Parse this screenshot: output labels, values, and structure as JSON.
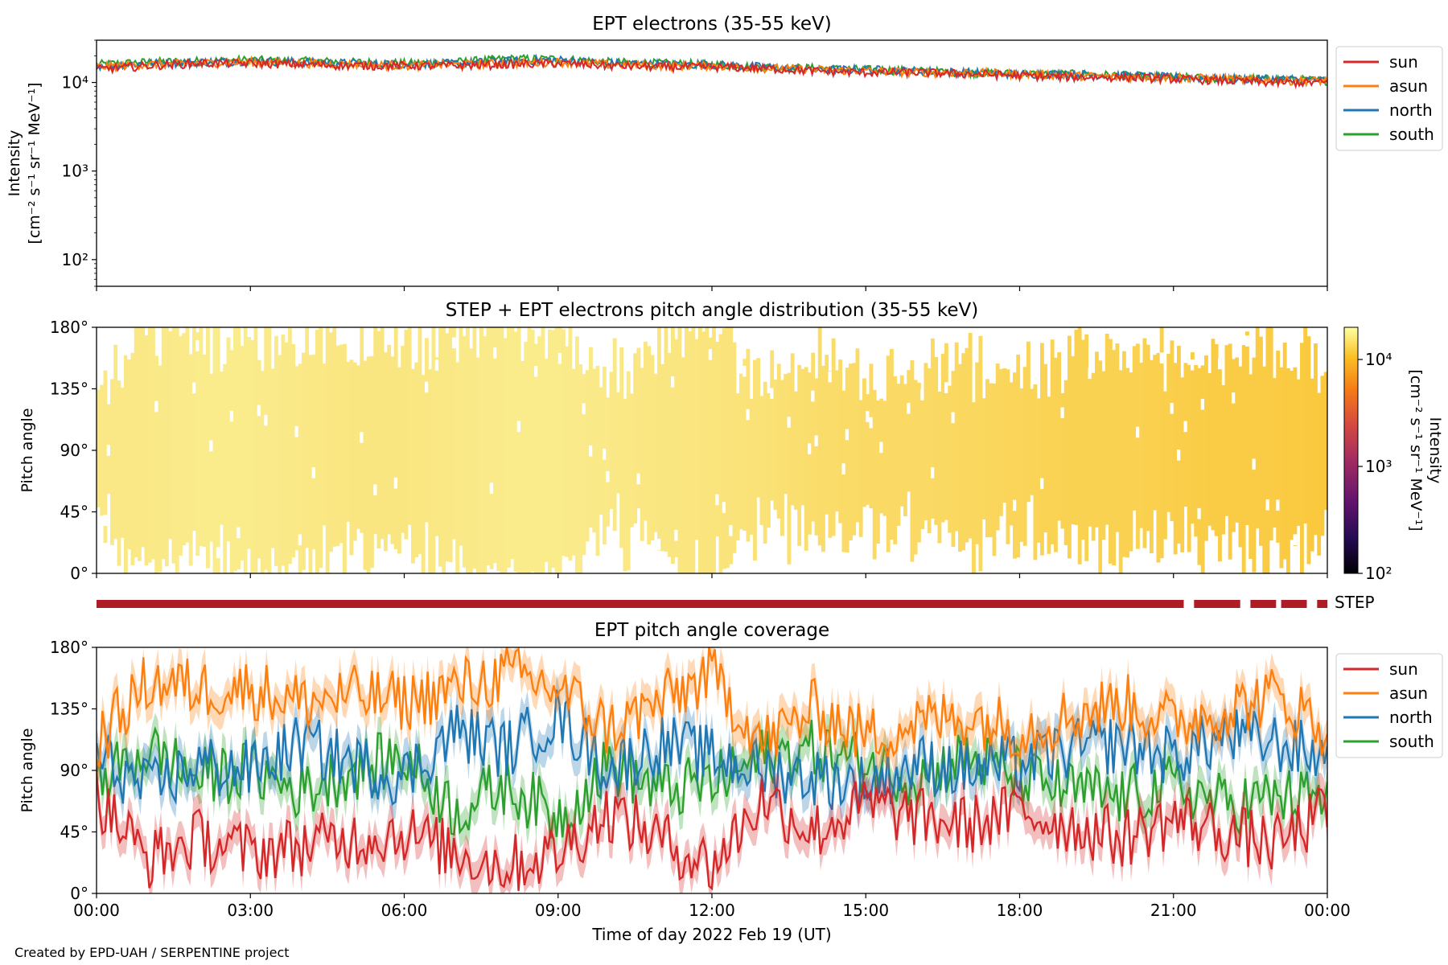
{
  "figure": {
    "credit": "Created by EPD-UAH / SERPENTINE project",
    "xlabel": "Time of day 2022 Feb 19 (UT)",
    "xticks": [
      "00:00",
      "03:00",
      "06:00",
      "09:00",
      "12:00",
      "15:00",
      "18:00",
      "21:00",
      "00:00"
    ]
  },
  "panels": {
    "p1": {
      "title": "EPT electrons (35-55 keV)",
      "ylabel_line1": "Intensity",
      "ylabel_line2": "[cm⁻² s⁻¹ sr⁻¹ MeV⁻¹]"
    },
    "p2": {
      "title": "STEP + EPT electrons pitch angle distribution (35-55 keV)",
      "ylabel": "Pitch angle",
      "cbar_label_line1": "Intensity",
      "cbar_label_line2": "[cm⁻² s⁻¹ sr⁻¹ MeV⁻¹]"
    },
    "step": {
      "label": "STEP"
    },
    "p3": {
      "title": "EPT pitch angle coverage",
      "ylabel": "Pitch angle"
    }
  },
  "legend": {
    "sun": "sun",
    "asun": "asun",
    "north": "north",
    "south": "south"
  },
  "colors": {
    "sun": "#d62728",
    "asun": "#ff7f0e",
    "north": "#1f77b4",
    "south": "#2ca02c",
    "step_bar": "#b01c26"
  },
  "chart_data": [
    {
      "type": "line",
      "title": "EPT electrons (35-55 keV)",
      "xlabel": "",
      "ylabel": "Intensity [cm⁻² s⁻¹ sr⁻¹ MeV⁻¹]",
      "yscale": "log",
      "ylim": [
        50,
        30000
      ],
      "yticks": [
        100,
        1000,
        10000
      ],
      "yticklabels": [
        "10²",
        "10³",
        "10⁴"
      ],
      "x_unit": "hours (UT)",
      "xlim": [
        0,
        24
      ],
      "x": [
        0,
        1,
        2,
        3,
        4,
        5,
        6,
        7,
        8,
        9,
        10,
        11,
        12,
        13,
        14,
        15,
        16,
        17,
        18,
        19,
        20,
        21,
        22,
        23,
        24
      ],
      "legend_position": "right",
      "series": [
        {
          "name": "sun",
          "values": [
            14000,
            15500,
            16500,
            16500,
            16000,
            15500,
            15500,
            15500,
            16000,
            16500,
            15500,
            15000,
            15000,
            14500,
            13500,
            13000,
            13000,
            12500,
            12000,
            11500,
            11500,
            11000,
            10500,
            10000,
            10000
          ]
        },
        {
          "name": "asun",
          "values": [
            15000,
            16000,
            16500,
            17000,
            16500,
            16000,
            15500,
            16000,
            16500,
            17000,
            16000,
            15500,
            15500,
            14500,
            14000,
            13500,
            13000,
            13000,
            12500,
            12000,
            11500,
            11500,
            11000,
            10500,
            10500
          ]
        },
        {
          "name": "north",
          "values": [
            15500,
            16500,
            17000,
            17500,
            17000,
            16500,
            16000,
            16500,
            17500,
            18000,
            16500,
            16000,
            16000,
            15000,
            14000,
            14000,
            13500,
            13000,
            12500,
            12500,
            12000,
            11500,
            11000,
            11000,
            10500
          ]
        },
        {
          "name": "south",
          "values": [
            16000,
            17000,
            17500,
            18000,
            17500,
            17000,
            16500,
            17000,
            18500,
            18500,
            17000,
            16500,
            16000,
            15000,
            14500,
            14000,
            13500,
            13000,
            12500,
            12500,
            12000,
            11500,
            11000,
            11000,
            10500
          ]
        }
      ]
    },
    {
      "type": "heatmap",
      "title": "STEP + EPT electrons pitch angle distribution (35-55 keV)",
      "xlabel": "",
      "ylabel": "Pitch angle",
      "ylim": [
        0,
        180
      ],
      "yticks": [
        0,
        45,
        90,
        135,
        180
      ],
      "yticklabels": [
        "0°",
        "45°",
        "90°",
        "135°",
        "180°"
      ],
      "x_unit": "hours (UT)",
      "xlim": [
        0,
        24
      ],
      "colorbar": {
        "label": "Intensity [cm⁻² s⁻¹ sr⁻¹ MeV⁻¹]",
        "scale": "log",
        "range": [
          100,
          20000
        ],
        "ticks": [
          100,
          1000,
          10000
        ],
        "ticklabels": [
          "10²",
          "10³",
          "10⁴"
        ],
        "colormap": "inferno"
      },
      "x": [
        0,
        1,
        2,
        3,
        4,
        5,
        6,
        7,
        8,
        9,
        10,
        11,
        12,
        13,
        14,
        15,
        16,
        17,
        18,
        19,
        20,
        21,
        22,
        23,
        24
      ],
      "typical_intensity": [
        16000,
        16000,
        16500,
        16500,
        16000,
        15500,
        15500,
        16000,
        16500,
        16500,
        16000,
        15500,
        15000,
        14500,
        13500,
        13000,
        13000,
        12500,
        12000,
        11500,
        11500,
        11000,
        10500,
        10500,
        10000
      ]
    },
    {
      "type": "bar",
      "title": "STEP",
      "description_units": "STEP data availability intervals (hours UT)",
      "intervals": [
        [
          0,
          21.2
        ],
        [
          21.4,
          22.3
        ],
        [
          22.5,
          23.0
        ],
        [
          23.1,
          23.6
        ],
        [
          23.8,
          24.0
        ]
      ]
    },
    {
      "type": "area",
      "title": "EPT pitch angle coverage",
      "xlabel": "Time of day 2022 Feb 19 (UT)",
      "ylabel": "Pitch angle",
      "ylim": [
        0,
        180
      ],
      "yticks": [
        0,
        45,
        90,
        135,
        180
      ],
      "yticklabels": [
        "0°",
        "45°",
        "90°",
        "135°",
        "180°"
      ],
      "xlim": [
        0,
        24
      ],
      "xticklabels": [
        "00:00",
        "03:00",
        "06:00",
        "09:00",
        "12:00",
        "15:00",
        "18:00",
        "21:00",
        "00:00"
      ],
      "x": [
        0,
        1,
        2,
        3,
        4,
        5,
        6,
        7,
        8,
        9,
        10,
        11,
        12,
        13,
        14,
        15,
        16,
        17,
        18,
        19,
        20,
        21,
        22,
        23,
        24
      ],
      "legend_position": "right",
      "band_halfwidth_deg": 12,
      "series": [
        {
          "name": "sun",
          "values": [
            70,
            25,
            40,
            30,
            35,
            40,
            45,
            30,
            20,
            30,
            60,
            40,
            20,
            70,
            45,
            65,
            55,
            50,
            60,
            50,
            40,
            55,
            45,
            35,
            60
          ]
        },
        {
          "name": "asun",
          "values": [
            110,
            155,
            150,
            150,
            140,
            145,
            140,
            150,
            160,
            150,
            120,
            140,
            160,
            110,
            135,
            115,
            125,
            130,
            120,
            130,
            140,
            125,
            135,
            145,
            120
          ]
        },
        {
          "name": "north",
          "values": [
            100,
            75,
            95,
            90,
            110,
            95,
            85,
            120,
            105,
            130,
            90,
            110,
            100,
            90,
            85,
            80,
            95,
            90,
            95,
            105,
            110,
            100,
            115,
            110,
            100
          ]
        },
        {
          "name": "south",
          "values": [
            80,
            105,
            85,
            90,
            75,
            90,
            100,
            60,
            80,
            55,
            95,
            75,
            80,
            100,
            105,
            95,
            85,
            100,
            85,
            75,
            70,
            80,
            65,
            70,
            70
          ]
        }
      ]
    }
  ]
}
